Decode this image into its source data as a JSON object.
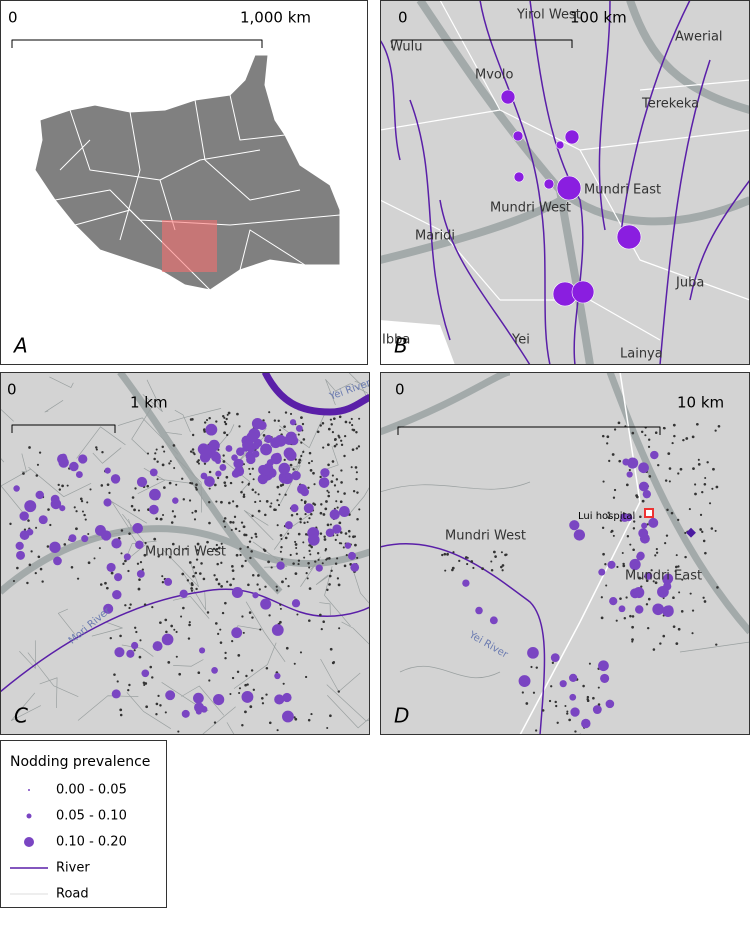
{
  "panels": [
    {
      "label": "A",
      "scale": [
        "0",
        "1,000 km"
      ],
      "places": []
    },
    {
      "label": "B",
      "scale": [
        "0",
        "100 km"
      ],
      "places": [
        "Wulu",
        "Yirol West",
        "Awerial",
        "Mvolo",
        "Terekeka",
        "Mundri East",
        "Mundri West",
        "Maridi",
        "Juba",
        "Ibba",
        "Yei",
        "Lainya"
      ]
    },
    {
      "label": "C",
      "scale": [
        "0",
        "1 km"
      ],
      "places": [
        "Yei River",
        "Mundri West",
        "Mori River"
      ]
    },
    {
      "label": "D",
      "scale": [
        "0",
        "10 km"
      ],
      "places": [
        "Lui hospital",
        "Mundri West",
        "Mundri East",
        "Yei River"
      ]
    }
  ],
  "legend": {
    "title": "Nodding prevalence",
    "items": [
      "0.00 - 0.05",
      "0.05 - 0.10",
      "0.10 - 0.20",
      "River",
      "Road"
    ]
  }
}
